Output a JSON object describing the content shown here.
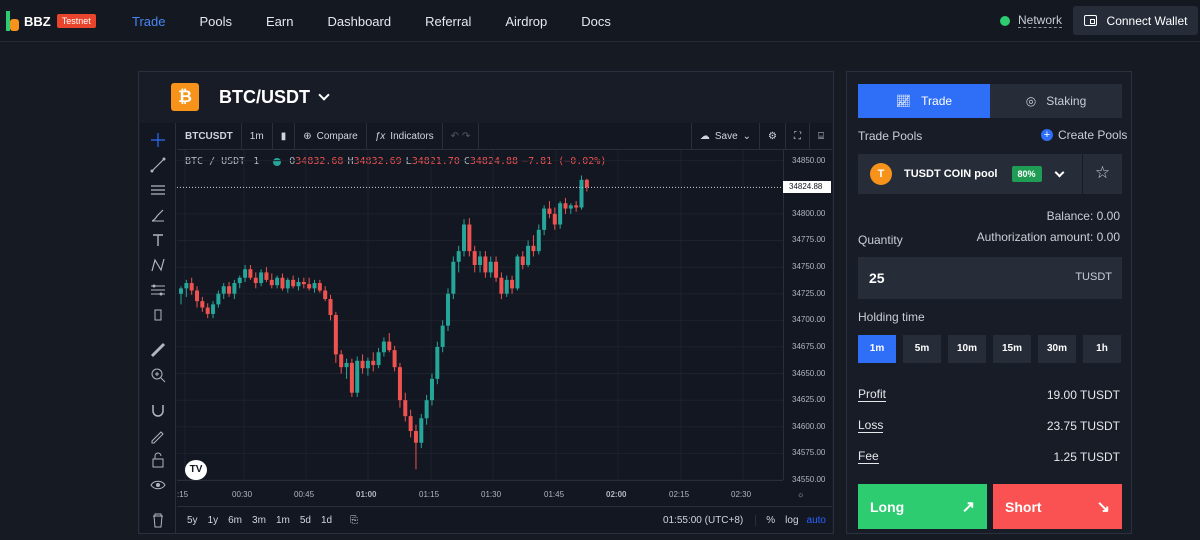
{
  "brand": {
    "name": "BBZ",
    "badge": "Testnet"
  },
  "nav": [
    {
      "label": "Trade",
      "active": true
    },
    {
      "label": "Pools"
    },
    {
      "label": "Earn"
    },
    {
      "label": "Dashboard"
    },
    {
      "label": "Referral"
    },
    {
      "label": "Airdrop"
    },
    {
      "label": "Docs"
    }
  ],
  "network": {
    "label": "Network",
    "status_color": "#2ecc71"
  },
  "connect_wallet": "Connect Wallet",
  "pair": {
    "icon": "₿",
    "name": "BTC/USDT"
  },
  "tv": {
    "symbol": "BTCUSDT",
    "interval": "1m",
    "compare": "Compare",
    "indicators": "Indicators",
    "save": "Save",
    "legend": {
      "title": "BTC / USDT",
      "interval": "1",
      "o_label": "O",
      "o": "34832.68",
      "h_label": "H",
      "h": "34832.69",
      "l_label": "L",
      "l": "34821.70",
      "c_label": "C",
      "c": "34824.88",
      "change": "−7.81 (−0.02%)"
    },
    "last_price": "34824.88",
    "price_ticks": [
      "34850.00",
      "34800.00",
      "34775.00",
      "34750.00",
      "34725.00",
      "34700.00",
      "34675.00",
      "34650.00",
      "34625.00",
      "34600.00",
      "34575.00",
      "34550.00"
    ],
    "time_ticks": [
      ":15",
      "00:30",
      "00:45",
      "01:00",
      "01:15",
      "01:30",
      "01:45",
      "02:00",
      "02:15",
      "02:30"
    ],
    "ranges": [
      "5y",
      "1y",
      "6m",
      "3m",
      "1m",
      "5d",
      "1d"
    ],
    "clock": "01:55:00 (UTC+8)",
    "scale_pct": "%",
    "scale_log": "log",
    "scale_auto": "auto",
    "logo": "TV"
  },
  "chart_data": {
    "type": "candlestick",
    "ylim": [
      34550,
      34860
    ],
    "up_color": "#26a69a",
    "down_color": "#ef5350",
    "candles": [
      [
        34725,
        34732,
        34715,
        34730
      ],
      [
        34730,
        34738,
        34722,
        34735
      ],
      [
        34735,
        34740,
        34724,
        34728
      ],
      [
        34728,
        34732,
        34712,
        34718
      ],
      [
        34718,
        34722,
        34708,
        34712
      ],
      [
        34712,
        34716,
        34702,
        34706
      ],
      [
        34706,
        34718,
        34702,
        34715
      ],
      [
        34715,
        34728,
        34712,
        34725
      ],
      [
        34725,
        34735,
        34720,
        34732
      ],
      [
        34732,
        34736,
        34722,
        34725
      ],
      [
        34725,
        34738,
        34720,
        34735
      ],
      [
        34735,
        34742,
        34730,
        34740
      ],
      [
        34740,
        34752,
        34736,
        34748
      ],
      [
        34748,
        34752,
        34738,
        34740
      ],
      [
        34740,
        34745,
        34730,
        34735
      ],
      [
        34735,
        34748,
        34732,
        34745
      ],
      [
        34745,
        34750,
        34736,
        34738
      ],
      [
        34738,
        34744,
        34730,
        34733
      ],
      [
        34733,
        34742,
        34730,
        34740
      ],
      [
        34740,
        34744,
        34728,
        34730
      ],
      [
        34730,
        34740,
        34726,
        34738
      ],
      [
        34738,
        34742,
        34730,
        34732
      ],
      [
        34732,
        34740,
        34728,
        34736
      ],
      [
        34736,
        34740,
        34730,
        34734
      ],
      [
        34734,
        34740,
        34728,
        34730
      ],
      [
        34730,
        34738,
        34726,
        34735
      ],
      [
        34735,
        34738,
        34726,
        34728
      ],
      [
        34728,
        34732,
        34718,
        34720
      ],
      [
        34720,
        34724,
        34700,
        34705
      ],
      [
        34705,
        34708,
        34660,
        34668
      ],
      [
        34668,
        34672,
        34650,
        34656
      ],
      [
        34656,
        34664,
        34645,
        34660
      ],
      [
        34660,
        34664,
        34628,
        34632
      ],
      [
        34632,
        34666,
        34628,
        34662
      ],
      [
        34662,
        34668,
        34650,
        34655
      ],
      [
        34655,
        34665,
        34648,
        34662
      ],
      [
        34662,
        34670,
        34652,
        34658
      ],
      [
        34658,
        34674,
        34655,
        34670
      ],
      [
        34670,
        34684,
        34666,
        34680
      ],
      [
        34680,
        34688,
        34670,
        34672
      ],
      [
        34672,
        34676,
        34652,
        34656
      ],
      [
        34656,
        34660,
        34618,
        34625
      ],
      [
        34625,
        34632,
        34605,
        34610
      ],
      [
        34610,
        34616,
        34590,
        34596
      ],
      [
        34596,
        34602,
        34560,
        34585
      ],
      [
        34585,
        34612,
        34580,
        34608
      ],
      [
        34608,
        34630,
        34602,
        34625
      ],
      [
        34625,
        34650,
        34620,
        34645
      ],
      [
        34645,
        34680,
        34640,
        34675
      ],
      [
        34675,
        34700,
        34670,
        34695
      ],
      [
        34695,
        34730,
        34690,
        34725
      ],
      [
        34725,
        34760,
        34720,
        34755
      ],
      [
        34755,
        34770,
        34745,
        34765
      ],
      [
        34765,
        34795,
        34760,
        34790
      ],
      [
        34790,
        34796,
        34760,
        34765
      ],
      [
        34765,
        34770,
        34745,
        34752
      ],
      [
        34752,
        34765,
        34745,
        34760
      ],
      [
        34760,
        34765,
        34740,
        34745
      ],
      [
        34745,
        34760,
        34740,
        34755
      ],
      [
        34755,
        34760,
        34736,
        34740
      ],
      [
        34740,
        34745,
        34720,
        34725
      ],
      [
        34725,
        34742,
        34722,
        34738
      ],
      [
        34738,
        34742,
        34725,
        34730
      ],
      [
        34730,
        34762,
        34728,
        34760
      ],
      [
        34760,
        34765,
        34748,
        34752
      ],
      [
        34752,
        34775,
        34750,
        34770
      ],
      [
        34770,
        34780,
        34760,
        34765
      ],
      [
        34765,
        34790,
        34762,
        34785
      ],
      [
        34785,
        34808,
        34780,
        34805
      ],
      [
        34805,
        34812,
        34796,
        34800
      ],
      [
        34800,
        34806,
        34785,
        34790
      ],
      [
        34790,
        34812,
        34786,
        34810
      ],
      [
        34810,
        34815,
        34800,
        34805
      ],
      [
        34805,
        34810,
        34800,
        34808
      ],
      [
        34808,
        34812,
        34802,
        34806
      ],
      [
        34806,
        34836,
        34804,
        34832
      ],
      [
        34832,
        34833,
        34821,
        34825
      ]
    ]
  },
  "panel": {
    "tab_trade": "Trade",
    "tab_staking": "Staking",
    "trade_pools": "Trade Pools",
    "create_pools": "Create Pools",
    "pool": {
      "icon": "T",
      "name": "TUSDT COIN pool",
      "pct": "80%"
    },
    "balance": "Balance: 0.00",
    "quantity_label": "Quantity",
    "auth_amount": "Authorization amount: 0.00",
    "quantity_value": "25",
    "quantity_unit": "TUSDT",
    "holding_time": "Holding time",
    "hold_options": [
      "1m",
      "5m",
      "10m",
      "15m",
      "30m",
      "1h"
    ],
    "hold_selected": "1m",
    "profit_label": "Profit",
    "profit": "19.00 TUSDT",
    "loss_label": "Loss",
    "loss": "23.75 TUSDT",
    "fee_label": "Fee",
    "fee": "1.25 TUSDT",
    "long": "Long",
    "short": "Short"
  }
}
